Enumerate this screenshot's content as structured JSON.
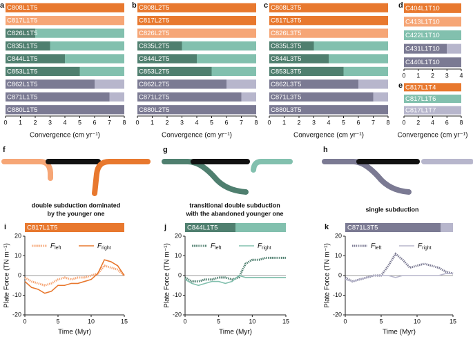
{
  "chart_data": [
    {
      "type": "bar",
      "panel": "a",
      "xlim": [
        0,
        8
      ],
      "xticks": [
        0,
        1,
        2,
        3,
        4,
        5,
        6,
        7,
        8
      ],
      "xlabel": "Convergence (cm yr⁻¹)",
      "categories": [
        "C808L1T5",
        "C817L1T5",
        "C826L1T5",
        "C835L1T5",
        "C844L1T5",
        "C853L1T5",
        "C862L1T5",
        "C871L1T5",
        "C880L1T5"
      ],
      "series": [
        {
          "values": [
            8,
            8,
            2,
            3,
            4,
            5,
            6,
            7,
            8
          ],
          "colors": [
            "#e8782e",
            "#f6a676",
            "#4f7f6f",
            "#4f7f6f",
            "#4f7f6f",
            "#4f7f6f",
            "#7b7a93",
            "#7b7a93",
            "#7b7a93"
          ]
        },
        {
          "values": [
            null,
            null,
            6,
            5,
            4,
            3,
            2,
            1,
            null
          ],
          "colors": [
            "#e8782e",
            "#f6a676",
            "#82c0ae",
            "#82c0ae",
            "#82c0ae",
            "#82c0ae",
            "#b7b6cc",
            "#b7b6cc",
            "#b7b6cc"
          ]
        }
      ]
    },
    {
      "type": "bar",
      "panel": "b",
      "xlim": [
        0,
        8
      ],
      "xticks": [
        0,
        1,
        2,
        3,
        4,
        5,
        6,
        7,
        8
      ],
      "xlabel": "Convergence (cm yr⁻¹)",
      "categories": [
        "C808L2T5",
        "C817L2T5",
        "C826L2T5",
        "C835L2T5",
        "C844L2T5",
        "C853L2T5",
        "C862L2T5",
        "C871L2T5",
        "C880L2T5"
      ],
      "series": [
        {
          "values": [
            8,
            8,
            8,
            3,
            4,
            5,
            6,
            7,
            8
          ],
          "colors": [
            "#e8782e",
            "#e8782e",
            "#f6a676",
            "#4f7f6f",
            "#4f7f6f",
            "#4f7f6f",
            "#7b7a93",
            "#7b7a93",
            "#7b7a93"
          ]
        },
        {
          "values": [
            null,
            null,
            null,
            5,
            4,
            3,
            2,
            1,
            null
          ],
          "colors": [
            "#e8782e",
            "#e8782e",
            "#f6a676",
            "#82c0ae",
            "#82c0ae",
            "#82c0ae",
            "#b7b6cc",
            "#b7b6cc",
            "#b7b6cc"
          ]
        }
      ]
    },
    {
      "type": "bar",
      "panel": "c",
      "xlim": [
        0,
        8
      ],
      "xticks": [
        0,
        1,
        2,
        3,
        4,
        5,
        6,
        7,
        8
      ],
      "xlabel": "Convergence (cm yr⁻¹)",
      "categories": [
        "C808L3T5",
        "C817L3T5",
        "C826L3T5",
        "C835L3T5",
        "C844L3T5",
        "C853L3T5",
        "C862L3T5",
        "C871L3T5",
        "C880L3T5"
      ],
      "series": [
        {
          "values": [
            8,
            8,
            8,
            3,
            4,
            5,
            6,
            7,
            8
          ],
          "colors": [
            "#e8782e",
            "#e8782e",
            "#f6a676",
            "#4f7f6f",
            "#4f7f6f",
            "#4f7f6f",
            "#7b7a93",
            "#7b7a93",
            "#7b7a93"
          ]
        },
        {
          "values": [
            null,
            null,
            null,
            5,
            4,
            3,
            2,
            1,
            null
          ],
          "colors": [
            "#e8782e",
            "#e8782e",
            "#f6a676",
            "#82c0ae",
            "#82c0ae",
            "#82c0ae",
            "#b7b6cc",
            "#b7b6cc",
            "#b7b6cc"
          ]
        }
      ]
    },
    {
      "type": "bar",
      "panel": "d",
      "xlim": [
        0,
        4
      ],
      "xticks": [
        0,
        1,
        2,
        3,
        4
      ],
      "categories": [
        "C404L1T10",
        "C413L1T10",
        "C422L1T10",
        "C431L1T10",
        "C440L1T10"
      ],
      "series": [
        {
          "values": [
            4,
            4,
            4,
            3,
            4
          ],
          "colors": [
            "#e8782e",
            "#f6a676",
            "#82c0ae",
            "#7b7a93",
            "#7b7a93"
          ]
        },
        {
          "values": [
            null,
            null,
            null,
            1,
            null
          ],
          "colors": [
            "#e8782e",
            "#f6a676",
            "#82c0ae",
            "#b7b6cc",
            "#b7b6cc"
          ]
        }
      ]
    },
    {
      "type": "bar",
      "panel": "e",
      "xlim": [
        0,
        8
      ],
      "xticks": [
        0,
        2,
        4,
        6,
        8
      ],
      "xlabel": "Convergence (cm yr⁻¹)",
      "categories": [
        "C817L1T4",
        "C817L1T6",
        "C817L1T7"
      ],
      "series": [
        {
          "values": [
            8,
            8,
            8
          ],
          "colors": [
            "#e8782e",
            "#82c0ae",
            "#b7b6cc"
          ]
        }
      ]
    },
    {
      "type": "line",
      "panel": "i",
      "xlim": [
        0,
        15
      ],
      "ylim": [
        -20,
        20
      ],
      "xticks": [
        0,
        5,
        10,
        15
      ],
      "yticks": [
        -20,
        -10,
        0,
        10,
        20
      ],
      "xlabel": "Time (Myr)",
      "ylabel": "Plate Force (TN m⁻¹)",
      "top_bar": {
        "label": "C817L1T5",
        "values": [
          15
        ],
        "colors": [
          "#e8782e"
        ]
      },
      "x": [
        0,
        1,
        2,
        3,
        4,
        5,
        6,
        7,
        8,
        9,
        10,
        11,
        12,
        13,
        14,
        15
      ],
      "series": [
        {
          "name": "F",
          "subscript": "left",
          "color": "#f6a676",
          "style": "dotted",
          "values": [
            -1,
            -3,
            -4,
            -5,
            -4,
            -2,
            -1,
            -2,
            -1,
            -1,
            0,
            1,
            5,
            4,
            3,
            0
          ]
        },
        {
          "name": "F",
          "subscript": "right",
          "color": "#e8782e",
          "style": "solid",
          "values": [
            -3,
            -6,
            -7,
            -9,
            -8,
            -5,
            -5,
            -4,
            -4,
            -3,
            -2,
            1,
            8,
            7,
            5,
            0
          ]
        }
      ]
    },
    {
      "type": "line",
      "panel": "j",
      "xlim": [
        0,
        15
      ],
      "ylim": [
        -20,
        20
      ],
      "xticks": [
        0,
        5,
        10,
        15
      ],
      "yticks": [
        -20,
        -10,
        0,
        10,
        20
      ],
      "xlabel": "Time (Myr)",
      "ylabel": "Plate Force (TN m⁻¹)",
      "top_bar": {
        "label": "C844L1T5",
        "values": [
          7.5,
          7.5
        ],
        "colors": [
          "#4f7f6f",
          "#82c0ae"
        ]
      },
      "x": [
        0,
        1,
        2,
        3,
        4,
        5,
        6,
        7,
        8,
        9,
        10,
        11,
        12,
        13,
        14,
        15
      ],
      "series": [
        {
          "name": "F",
          "subscript": "left",
          "color": "#4f7f6f",
          "style": "dotted",
          "values": [
            -1,
            -3,
            -3,
            -2,
            -2,
            -1,
            -1,
            -2,
            -1,
            6,
            8,
            8,
            9,
            9,
            9,
            9
          ]
        },
        {
          "name": "F",
          "subscript": "right",
          "color": "#82c0ae",
          "style": "solid",
          "values": [
            -2,
            -4,
            -5,
            -4,
            -3,
            -3,
            -4,
            -3,
            0,
            -1,
            -1,
            -1,
            -1,
            -1,
            -1,
            -1
          ]
        }
      ]
    },
    {
      "type": "line",
      "panel": "k",
      "xlim": [
        0,
        15
      ],
      "ylim": [
        -20,
        20
      ],
      "xticks": [
        0,
        5,
        10,
        15
      ],
      "yticks": [
        -20,
        -10,
        0,
        10,
        20
      ],
      "xlabel": "Time (Myr)",
      "ylabel": "Plate Force (TN m⁻¹)",
      "top_bar": {
        "label": "C871L3T5",
        "values": [
          13.3,
          1.7
        ],
        "colors": [
          "#7b7a93",
          "#b7b6cc"
        ]
      },
      "x": [
        0,
        1,
        2,
        3,
        4,
        5,
        6,
        7,
        8,
        9,
        10,
        11,
        12,
        13,
        14,
        15
      ],
      "series": [
        {
          "name": "F",
          "subscript": "left",
          "color": "#7b7a93",
          "style": "dotted",
          "values": [
            -1,
            -3,
            -2,
            -1,
            0,
            0,
            5,
            11,
            8,
            4,
            5,
            6,
            5,
            4,
            2,
            1
          ]
        },
        {
          "name": "F",
          "subscript": "right",
          "color": "#b7b6cc",
          "style": "solid",
          "values": [
            -2,
            -3,
            -2,
            -1,
            0,
            0,
            0,
            -1,
            0,
            0,
            0,
            0,
            0,
            0,
            1,
            1
          ]
        }
      ]
    }
  ],
  "diagrams": [
    {
      "panel": "f",
      "caption": [
        "double subduction dominated",
        "by the younger one"
      ]
    },
    {
      "panel": "g",
      "caption": [
        "transitional double subduction",
        "with the abandoned younger one"
      ]
    },
    {
      "panel": "h",
      "caption": [
        "single subduction"
      ]
    }
  ]
}
